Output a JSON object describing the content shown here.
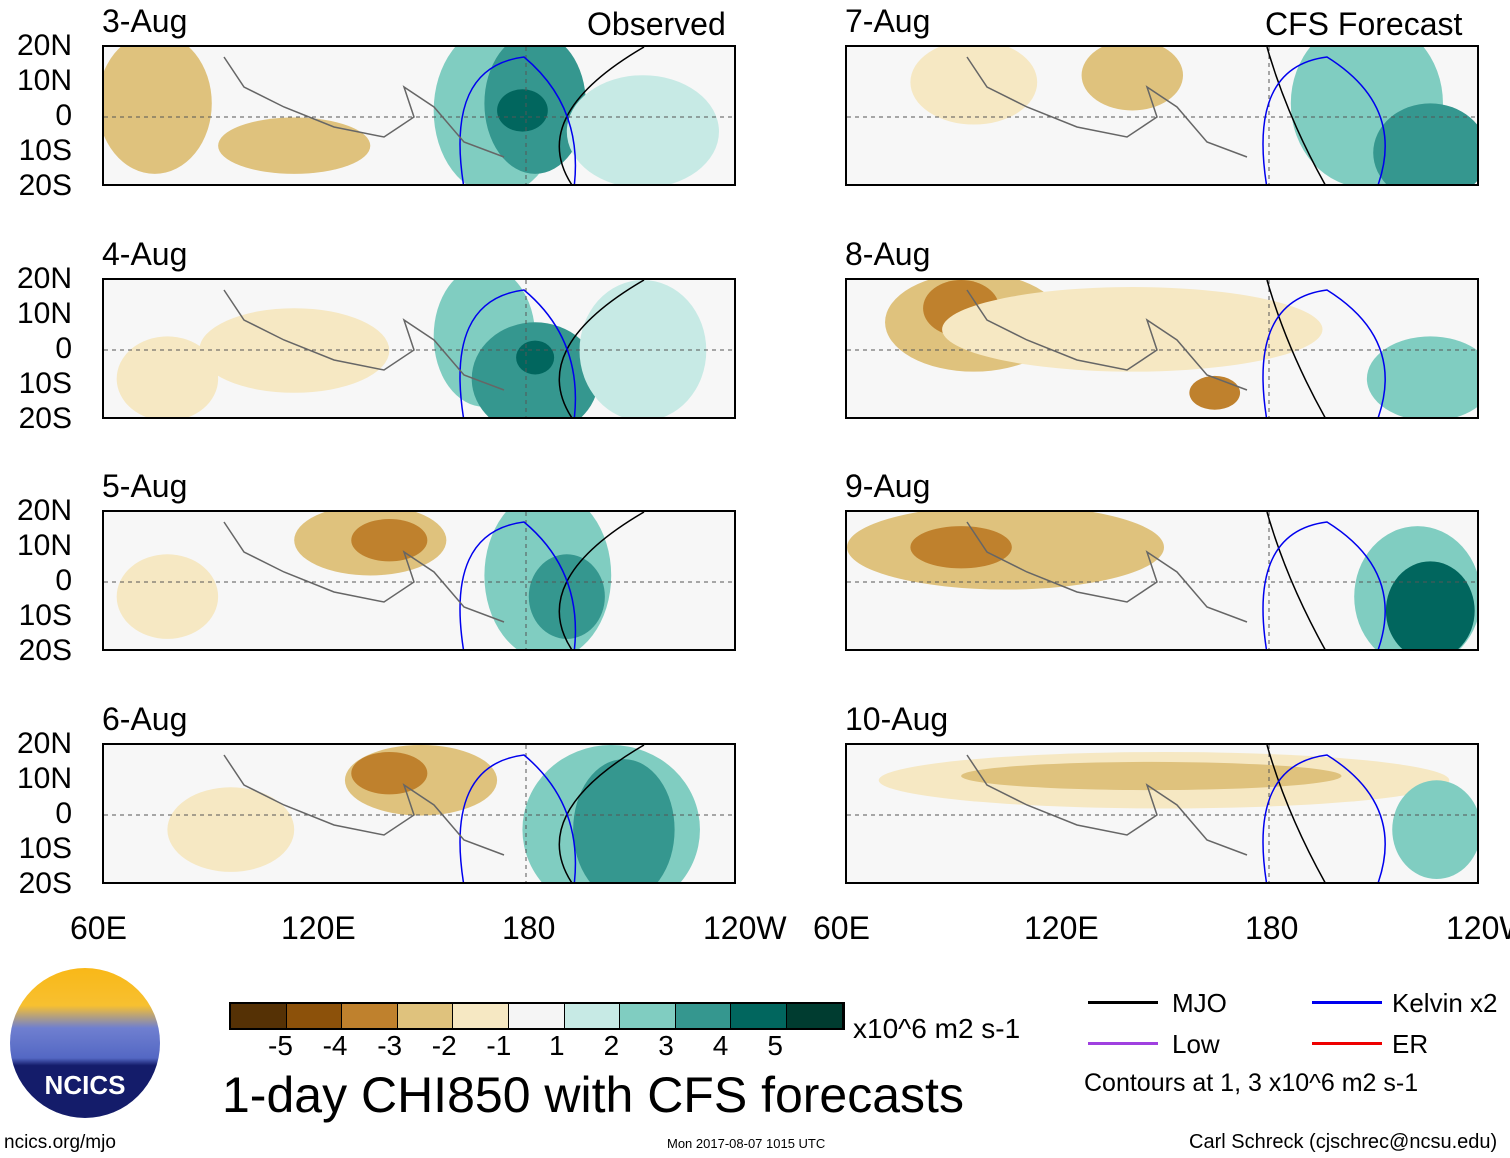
{
  "headers": {
    "left": "Observed",
    "right": "CFS Forecast"
  },
  "panels": {
    "left": [
      "3-Aug",
      "4-Aug",
      "5-Aug",
      "6-Aug"
    ],
    "right": [
      "7-Aug",
      "8-Aug",
      "9-Aug",
      "10-Aug"
    ]
  },
  "lat_labels": [
    "20N",
    "10N",
    "0",
    "10S",
    "20S"
  ],
  "lon_labels": [
    "60E",
    "120E",
    "180",
    "120W"
  ],
  "colorbar": {
    "colors": [
      "#553105",
      "#8c510a",
      "#bf812d",
      "#dfc27d",
      "#f6e8c3",
      "#f5f5f5",
      "#c7eae5",
      "#80cdc1",
      "#35978f",
      "#01665e",
      "#003c30"
    ],
    "ticks": [
      "-5",
      "-4",
      "-3",
      "-2",
      "-1",
      "1",
      "2",
      "3",
      "4",
      "5"
    ],
    "units": "x10^6 m2 s-1"
  },
  "title": "1-day CHI850 with CFS forecasts",
  "legend": {
    "items": [
      {
        "label": "MJO",
        "color": "#000000"
      },
      {
        "label": "Kelvin x2",
        "color": "#0000ee"
      },
      {
        "label": "Low",
        "color": "#a040e0"
      },
      {
        "label": "ER",
        "color": "#ee0000"
      }
    ],
    "note": "Contours at 1, 3 x10^6 m2 s-1"
  },
  "logo_text": "NCICS",
  "footer": {
    "url": "ncics.org/mjo",
    "timestamp": "Mon 2017-08-07 1015 UTC",
    "author": "Carl Schreck (cjschrec@ncsu.edu)"
  }
}
